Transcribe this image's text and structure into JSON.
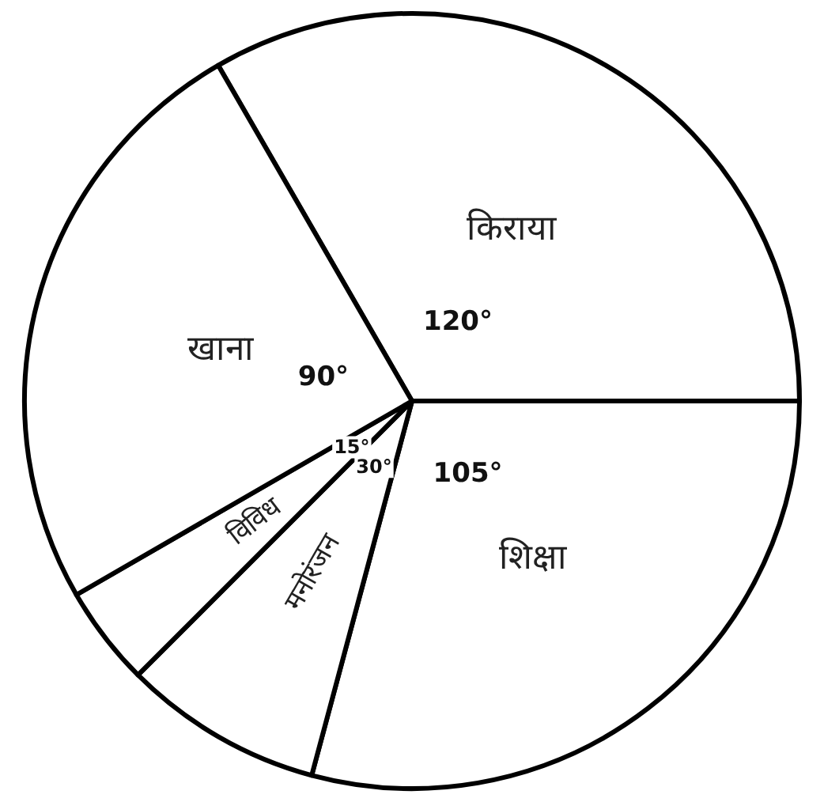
{
  "chart_data": {
    "type": "pie",
    "categories": [
      "किराया",
      "शिक्षा",
      "मनोरंजन",
      "विविध",
      "खाना"
    ],
    "values": [
      120,
      105,
      30,
      15,
      90
    ],
    "colors": [
      "#ffffff",
      "#ffffff",
      "#ffffff",
      "#ffffff",
      "#ffffff"
    ],
    "value_labels": [
      "120°",
      "105°",
      "30°",
      "15°",
      "90°"
    ],
    "legend": false
  }
}
